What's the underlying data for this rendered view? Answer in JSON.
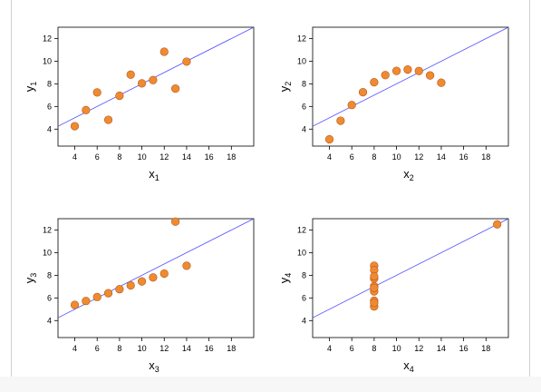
{
  "chart_data": [
    {
      "type": "scatter",
      "title": "",
      "xlabel": "x",
      "xlabel_sub": "1",
      "ylabel": "y",
      "ylabel_sub": "1",
      "xlim": [
        2.5,
        20
      ],
      "ylim": [
        2.5,
        13
      ],
      "xticks": [
        4,
        6,
        8,
        10,
        12,
        14,
        16,
        18
      ],
      "yticks": [
        4,
        6,
        8,
        10,
        12
      ],
      "grid": false,
      "fit_line": {
        "intercept": 3,
        "slope": 0.5
      },
      "series": [
        {
          "x": [
            10,
            8,
            13,
            9,
            11,
            14,
            6,
            4,
            12,
            7,
            5
          ],
          "y": [
            8.04,
            6.95,
            7.58,
            8.81,
            8.33,
            9.96,
            7.24,
            4.26,
            10.84,
            4.82,
            5.68
          ]
        }
      ],
      "colors": {
        "point": "#f08a30",
        "point_edge": "#b5581a",
        "line": "#4d4dff"
      }
    },
    {
      "type": "scatter",
      "title": "",
      "xlabel": "x",
      "xlabel_sub": "2",
      "ylabel": "y",
      "ylabel_sub": "2",
      "xlim": [
        2.5,
        20
      ],
      "ylim": [
        2.5,
        13
      ],
      "xticks": [
        4,
        6,
        8,
        10,
        12,
        14,
        16,
        18
      ],
      "yticks": [
        4,
        6,
        8,
        10,
        12
      ],
      "grid": false,
      "fit_line": {
        "intercept": 3,
        "slope": 0.5
      },
      "series": [
        {
          "x": [
            10,
            8,
            13,
            9,
            11,
            14,
            6,
            4,
            12,
            7,
            5
          ],
          "y": [
            9.14,
            8.14,
            8.74,
            8.77,
            9.26,
            8.1,
            6.13,
            3.1,
            9.13,
            7.26,
            4.74
          ]
        }
      ],
      "colors": {
        "point": "#f08a30",
        "point_edge": "#b5581a",
        "line": "#4d4dff"
      }
    },
    {
      "type": "scatter",
      "title": "",
      "xlabel": "x",
      "xlabel_sub": "3",
      "ylabel": "y",
      "ylabel_sub": "3",
      "xlim": [
        2.5,
        20
      ],
      "ylim": [
        2.5,
        13
      ],
      "xticks": [
        4,
        6,
        8,
        10,
        12,
        14,
        16,
        18
      ],
      "yticks": [
        4,
        6,
        8,
        10,
        12
      ],
      "grid": false,
      "fit_line": {
        "intercept": 3,
        "slope": 0.5
      },
      "series": [
        {
          "x": [
            10,
            8,
            13,
            9,
            11,
            14,
            6,
            4,
            12,
            7,
            5
          ],
          "y": [
            7.46,
            6.77,
            12.74,
            7.11,
            7.81,
            8.84,
            6.08,
            5.39,
            8.15,
            6.42,
            5.73
          ]
        }
      ],
      "colors": {
        "point": "#f08a30",
        "point_edge": "#b5581a",
        "line": "#4d4dff"
      }
    },
    {
      "type": "scatter",
      "title": "",
      "xlabel": "x",
      "xlabel_sub": "4",
      "ylabel": "y",
      "ylabel_sub": "4",
      "xlim": [
        2.5,
        20
      ],
      "ylim": [
        2.5,
        13
      ],
      "xticks": [
        4,
        6,
        8,
        10,
        12,
        14,
        16,
        18
      ],
      "yticks": [
        4,
        6,
        8,
        10,
        12
      ],
      "grid": false,
      "fit_line": {
        "intercept": 3,
        "slope": 0.5
      },
      "series": [
        {
          "x": [
            8,
            8,
            8,
            8,
            8,
            8,
            8,
            19,
            8,
            8,
            8
          ],
          "y": [
            6.58,
            5.76,
            7.71,
            8.84,
            8.47,
            7.04,
            5.25,
            12.5,
            5.56,
            7.91,
            6.89
          ]
        }
      ],
      "colors": {
        "point": "#f08a30",
        "point_edge": "#b5581a",
        "line": "#4d4dff"
      }
    }
  ]
}
